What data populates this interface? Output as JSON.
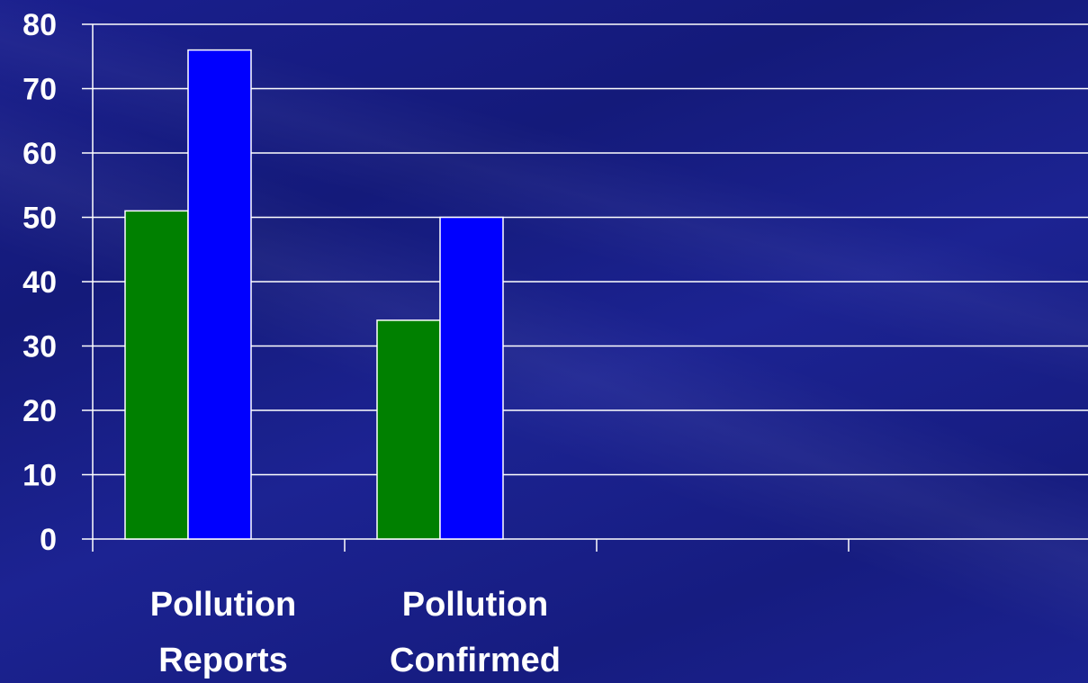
{
  "chart_data": {
    "type": "bar",
    "categories": [
      "Pollution Reports",
      "Pollution Confirmed",
      "",
      ""
    ],
    "category_label_lines": [
      [
        "Pollution",
        "Reports"
      ],
      [
        "Pollution",
        "Confirmed"
      ],
      [],
      []
    ],
    "series": [
      {
        "values": [
          51,
          34,
          null,
          null
        ],
        "color": "#008000"
      },
      {
        "values": [
          76,
          50,
          null,
          null
        ],
        "color": "#0000ff"
      }
    ],
    "ylim": [
      0,
      80
    ],
    "yticks": [
      0,
      10,
      20,
      30,
      40,
      50,
      60,
      70,
      80
    ],
    "grid": true,
    "legend": "none",
    "title": "",
    "xlabel": "",
    "ylabel": ""
  }
}
